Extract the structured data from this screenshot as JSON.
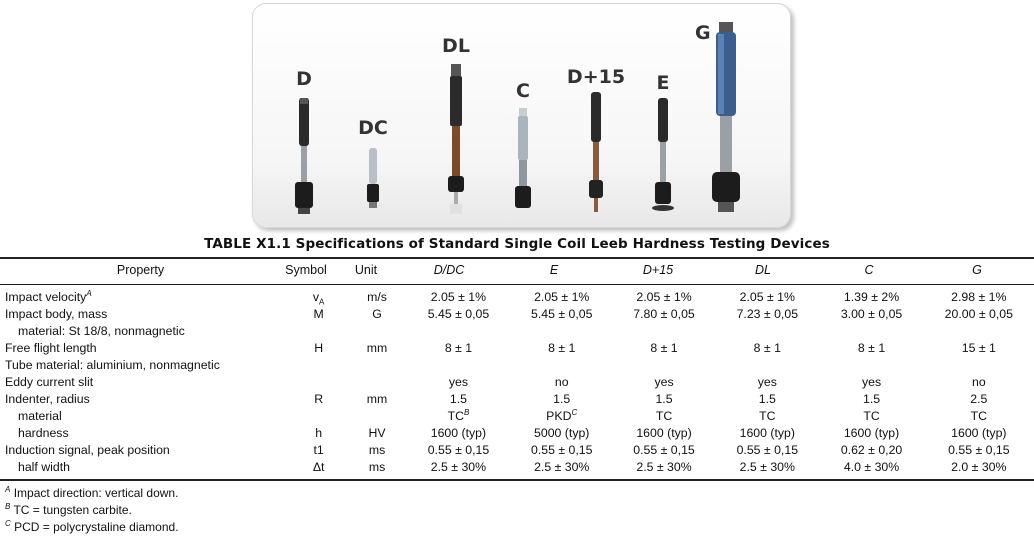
{
  "photo": {
    "devices": [
      "D",
      "DC",
      "DL",
      "C",
      "D+15",
      "E",
      "G"
    ]
  },
  "table": {
    "title": "TABLE X1.1  Specifications of Standard Single Coil Leeb Hardness Testing Devices",
    "headers": [
      "Property",
      "Symbol",
      "Unit",
      "D/DC",
      "E",
      "D+15",
      "DL",
      "C",
      "G"
    ],
    "rows": [
      {
        "property": "Impact velocity",
        "sup": "A",
        "symbol": "v",
        "symbol_sub": "A",
        "unit": "m/s",
        "values": [
          "2.05 ± 1%",
          "2.05 ± 1%",
          "2.05 ± 1%",
          "2.05 ± 1%",
          "1.39 ± 2%",
          "2.98 ± 1%"
        ]
      },
      {
        "property": "Impact body, mass",
        "symbol": "M",
        "unit": "G",
        "values": [
          "5.45 ± 0,05",
          "5.45 ± 0,05",
          "7.80 ± 0,05",
          "7.23 ± 0,05",
          "3.00 ± 0,05",
          "20.00 ± 0,05"
        ]
      },
      {
        "property": "material: St 18/8, nonmagnetic",
        "indent": true,
        "symbol": "",
        "unit": "",
        "values": [
          "",
          "",
          "",
          "",
          "",
          ""
        ]
      },
      {
        "property": "Free flight length",
        "symbol": "H",
        "unit": "mm",
        "values": [
          "8 ± 1",
          "8 ± 1",
          "8 ± 1",
          "8 ± 1",
          "8 ± 1",
          "15 ± 1"
        ]
      },
      {
        "property": "Tube material: aluminium, nonmagnetic",
        "symbol": "",
        "unit": "",
        "values": [
          "",
          "",
          "",
          "",
          "",
          ""
        ]
      },
      {
        "property": "Eddy current slit",
        "symbol": "",
        "unit": "",
        "values": [
          "yes",
          "no",
          "yes",
          "yes",
          "yes",
          "no"
        ]
      },
      {
        "property": "Indenter, radius",
        "symbol": "R",
        "unit": "mm",
        "values": [
          "1.5",
          "1.5",
          "1.5",
          "1.5",
          "1.5",
          "2.5"
        ]
      },
      {
        "property": "material",
        "indent": true,
        "symbol": "",
        "unit": "",
        "values": [
          "TC",
          "PKD",
          "TC",
          "TC",
          "TC",
          "TC"
        ],
        "value_sups": [
          "B",
          "C",
          "",
          "",
          "",
          ""
        ]
      },
      {
        "property": "hardness",
        "indent": true,
        "symbol": "h",
        "unit": "HV",
        "values": [
          "1600 (typ)",
          "5000 (typ)",
          "1600 (typ)",
          "1600 (typ)",
          "1600 (typ)",
          "1600 (typ)"
        ]
      },
      {
        "property": "Induction signal, peak position",
        "symbol": "t1",
        "unit": "ms",
        "values": [
          "0.55 ± 0,15",
          "0.55 ± 0,15",
          "0.55 ± 0,15",
          "0.55 ± 0,15",
          "0.62 ± 0,20",
          "0.55 ± 0,15"
        ]
      },
      {
        "property": "half width",
        "indent": true,
        "symbol": "Δt",
        "unit": "ms",
        "values": [
          "2.5 ± 30%",
          "2.5 ± 30%",
          "2.5 ± 30%",
          "2.5 ± 30%",
          "4.0 ± 30%",
          "2.0 ± 30%"
        ]
      }
    ],
    "footnotes": [
      {
        "mark": "A",
        "text": "Impact direction: vertical down."
      },
      {
        "mark": "B",
        "text": "TC = tungsten carbite."
      },
      {
        "mark": "C",
        "text": "PCD = polycrystaline diamond."
      }
    ]
  }
}
